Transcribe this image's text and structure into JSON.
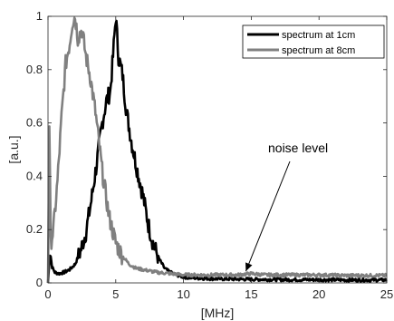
{
  "chart_data": {
    "type": "line",
    "xlabel": "[MHz]",
    "ylabel": "[a.u.]",
    "xlim": [
      0,
      25
    ],
    "ylim": [
      0,
      1
    ],
    "xticks": [
      0,
      5,
      10,
      15,
      20,
      25
    ],
    "yticks": [
      0,
      0.2,
      0.4,
      0.6,
      0.8,
      1
    ],
    "xtick_labels": [
      "0",
      "5",
      "10",
      "15",
      "20",
      "25"
    ],
    "ytick_labels": [
      "0",
      "0.2",
      "0.4",
      "0.6",
      "0.8",
      "1"
    ],
    "grid": false,
    "legend_position": "top-right",
    "series": [
      {
        "name": "spectrum at 1cm",
        "color": "#000000",
        "x": [
          0,
          0.15,
          0.3,
          0.5,
          0.8,
          1.2,
          1.6,
          2.0,
          2.4,
          2.8,
          3.2,
          3.6,
          4.0,
          4.3,
          4.6,
          4.8,
          5.0,
          5.2,
          5.5,
          5.8,
          6.2,
          6.6,
          7.0,
          7.4,
          7.8,
          8.2,
          8.6,
          9.0,
          9.5,
          10.0,
          11.0,
          12.0,
          14.0,
          16.0,
          18.0,
          20.0,
          22.0,
          25.0
        ],
        "values": [
          0.0,
          0.12,
          0.06,
          0.04,
          0.035,
          0.04,
          0.05,
          0.07,
          0.12,
          0.19,
          0.31,
          0.45,
          0.6,
          0.68,
          0.72,
          0.85,
          1.0,
          0.85,
          0.78,
          0.64,
          0.52,
          0.42,
          0.33,
          0.22,
          0.14,
          0.09,
          0.055,
          0.04,
          0.03,
          0.022,
          0.018,
          0.016,
          0.014,
          0.013,
          0.012,
          0.012,
          0.011,
          0.011
        ]
      },
      {
        "name": "spectrum at 8cm",
        "color": "#808080",
        "x": [
          0,
          0.1,
          0.2,
          0.4,
          0.7,
          1.0,
          1.3,
          1.6,
          1.8,
          2.0,
          2.2,
          2.5,
          2.8,
          3.1,
          3.5,
          4.0,
          4.5,
          5.0,
          5.5,
          6.0,
          6.5,
          7.0,
          8.0,
          9.0,
          10.0,
          12.0,
          14.0,
          15.0,
          16.0,
          18.0,
          20.0,
          22.0,
          25.0
        ],
        "values": [
          0.0,
          0.6,
          0.15,
          0.2,
          0.38,
          0.62,
          0.82,
          0.9,
          0.98,
          1.0,
          0.92,
          0.95,
          0.85,
          0.78,
          0.64,
          0.42,
          0.25,
          0.15,
          0.1,
          0.07,
          0.055,
          0.05,
          0.04,
          0.035,
          0.03,
          0.03,
          0.03,
          0.035,
          0.03,
          0.03,
          0.03,
          0.028,
          0.028
        ]
      }
    ],
    "annotations": [
      {
        "text": "noise level",
        "arrow_to": [
          14.6,
          0.03
        ]
      }
    ]
  }
}
